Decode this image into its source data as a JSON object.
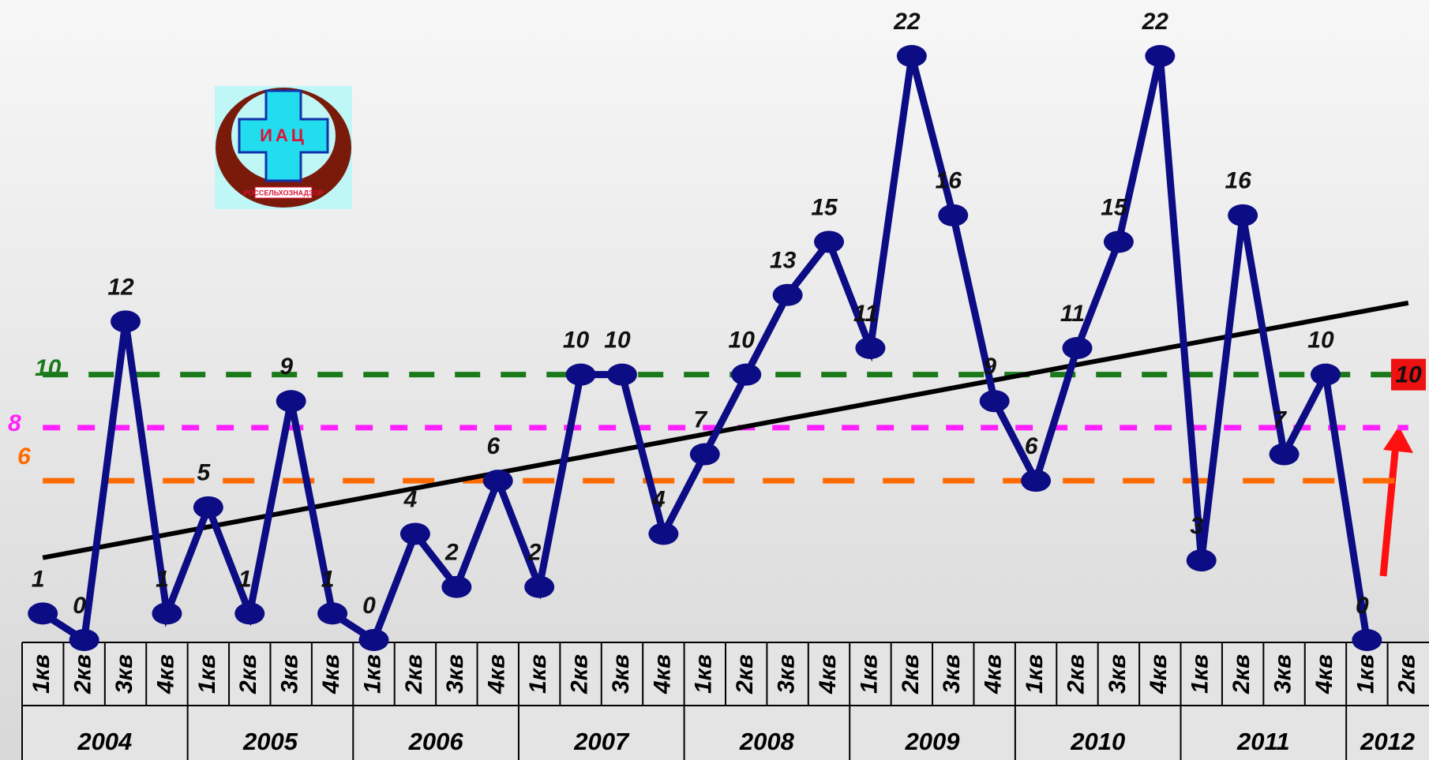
{
  "chart_data": {
    "type": "line",
    "categories": [
      "1кв",
      "2кв",
      "3кв",
      "4кв",
      "1кв",
      "2кв",
      "3кв",
      "4кв",
      "1кв",
      "2кв",
      "3кв",
      "4кв",
      "1кв",
      "2кв",
      "3кв",
      "4кв",
      "1кв",
      "2кв",
      "3кв",
      "4кв",
      "1кв",
      "2кв",
      "3кв",
      "4кв",
      "1кв",
      "2кв",
      "3кв",
      "4кв",
      "1кв",
      "2кв",
      "3кв",
      "4кв",
      "1кв",
      "2кв"
    ],
    "year_groups": [
      "2004",
      "2005",
      "2006",
      "2007",
      "2008",
      "2009",
      "2010",
      "2011",
      "2012"
    ],
    "series": [
      {
        "color": "#0c0c84",
        "values": [
          1,
          0,
          12,
          1,
          5,
          1,
          9,
          1,
          0,
          4,
          2,
          6,
          2,
          10,
          10,
          4,
          7,
          10,
          13,
          15,
          11,
          22,
          16,
          9,
          6,
          11,
          15,
          22,
          3,
          16,
          7,
          10,
          0,
          null
        ]
      }
    ],
    "ylim": [
      0,
      22
    ],
    "trend_line": {
      "color": "#000000",
      "values": [
        3.1,
        12.7
      ]
    },
    "reference_lines": [
      {
        "value": 10,
        "color": "#1a7a1a"
      },
      {
        "value": 8,
        "color": "#ff22ff"
      },
      {
        "value": 6,
        "color": "#ff6a00"
      }
    ],
    "logo": {
      "title": "ИАЦ",
      "subtitle": "РОССЕЛЬХОЗНАДЗОР"
    }
  }
}
